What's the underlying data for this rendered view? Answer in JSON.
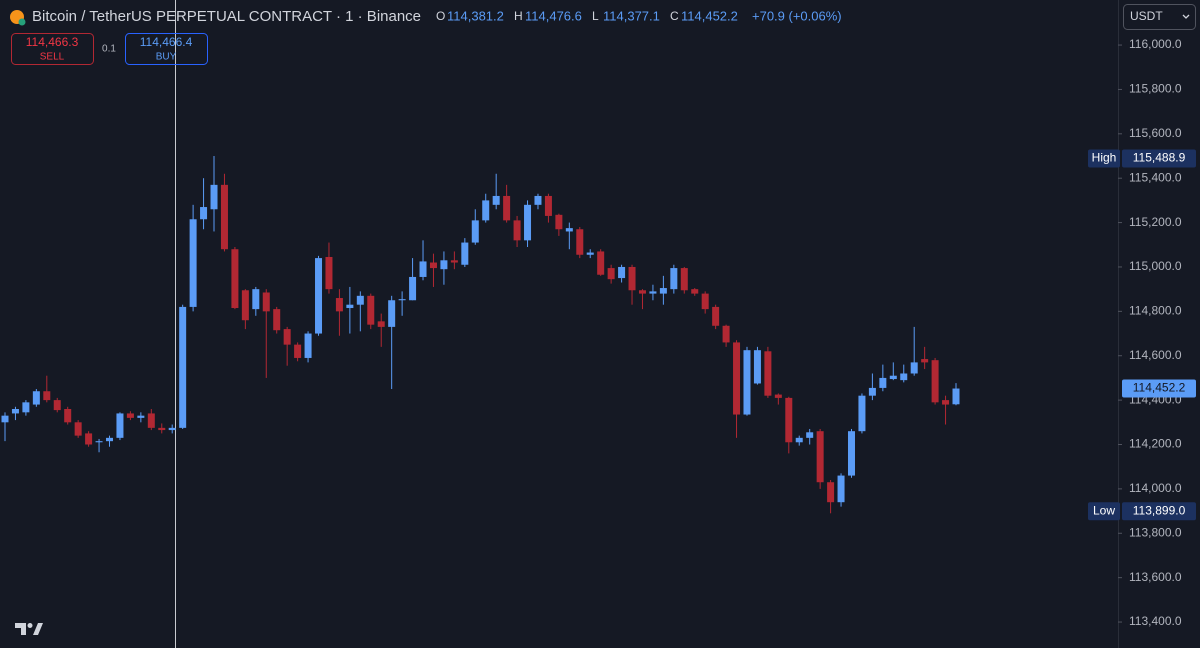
{
  "chart_data": {
    "type": "candlestick",
    "title": "Bitcoin / TetherUS PERPETUAL CONTRACT · 1 · Binance",
    "ohlc_header": [
      {
        "label": "O",
        "value": "114,381.2"
      },
      {
        "label": "H",
        "value": "114,476.6"
      },
      {
        "label": "L",
        "value": "114,377.1"
      },
      {
        "label": "C",
        "value": "114,452.2"
      }
    ],
    "change": "+70.9 (+0.06%)",
    "sell": {
      "price": "114,466.3",
      "label": "SELL"
    },
    "quantity": "0.1",
    "buy": {
      "price": "114,466.4",
      "label": "BUY"
    },
    "currency": "USDT",
    "up_color": "#5b9cf6",
    "down_color": "#b22833",
    "categories": [
      null,
      null,
      null,
      null,
      null,
      null,
      null,
      null,
      null,
      null,
      null,
      null,
      null,
      null,
      null,
      null,
      null,
      null,
      null,
      null,
      null,
      null,
      null,
      null,
      null,
      null,
      null,
      null,
      null,
      null,
      null,
      null,
      null,
      null,
      null,
      null,
      null,
      null,
      null,
      null,
      null,
      null,
      null,
      null,
      null,
      null,
      null,
      null,
      null,
      null,
      null,
      null,
      null,
      null,
      null,
      null,
      null,
      null,
      null,
      null,
      null,
      null,
      null,
      null,
      null,
      null,
      null,
      null,
      null,
      null,
      null,
      null,
      null,
      null,
      null,
      null,
      null,
      null,
      null,
      null,
      null,
      null,
      null,
      null,
      null,
      null,
      null,
      null,
      null,
      null,
      null,
      null
    ],
    "open": [
      114300,
      114340,
      114345,
      114380,
      114440,
      114400,
      114360,
      114300,
      114250,
      114210,
      114215,
      114230,
      114340,
      114320,
      114340,
      114275,
      114265,
      114275,
      114820,
      115215,
      115260,
      115370,
      115080,
      114895,
      114810,
      114885,
      114810,
      114720,
      114650,
      114590,
      114700,
      115045,
      114860,
      114815,
      114830,
      114870,
      114755,
      114730,
      114850,
      114850,
      114955,
      115020,
      114990,
      115030,
      115010,
      115110,
      115210,
      115280,
      115320,
      115210,
      115120,
      115280,
      115320,
      115235,
      115160,
      115170,
      115055,
      115070,
      114995,
      114950,
      115000,
      114895,
      114880,
      114880,
      114900,
      114995,
      114900,
      114880,
      114820,
      114735,
      114660,
      114335,
      114475,
      114620,
      114425,
      114410,
      114210,
      114230,
      114260,
      114030,
      113940,
      114060,
      114260,
      114420,
      114455,
      114495,
      114490,
      114520,
      114585,
      114580,
      114400,
      114381.2
    ],
    "high": [
      114345,
      114370,
      114400,
      114450,
      114510,
      114410,
      114370,
      114310,
      114260,
      114225,
      114240,
      114345,
      114350,
      114345,
      114360,
      114295,
      114290,
      114830,
      115280,
      115400,
      115500,
      115420,
      115090,
      114900,
      114910,
      114900,
      114820,
      114730,
      114660,
      114710,
      115050,
      115110,
      114900,
      114910,
      114890,
      114880,
      114790,
      114870,
      114890,
      115040,
      115120,
      115060,
      115070,
      115070,
      115130,
      115260,
      115330,
      115420,
      115370,
      115230,
      115300,
      115330,
      115330,
      115240,
      115200,
      115180,
      115080,
      115080,
      115010,
      115010,
      115010,
      114900,
      114920,
      114960,
      115010,
      115000,
      114905,
      114890,
      114830,
      114740,
      114670,
      114640,
      114640,
      114640,
      114430,
      114415,
      114240,
      114270,
      114270,
      114040,
      114070,
      114270,
      114430,
      114520,
      114560,
      114570,
      114560,
      114730,
      114640,
      114590,
      114420,
      114476.6
    ],
    "low": [
      114215,
      114310,
      114330,
      114370,
      114390,
      114345,
      114290,
      114230,
      114190,
      114165,
      114190,
      114220,
      114310,
      114300,
      114265,
      114250,
      114250,
      114270,
      114800,
      115170,
      115160,
      115070,
      114810,
      114720,
      114780,
      114500,
      114700,
      114555,
      114575,
      114570,
      114690,
      114880,
      114690,
      114700,
      114710,
      114720,
      114640,
      114450,
      114780,
      114850,
      114940,
      114910,
      114920,
      114990,
      115000,
      115100,
      115200,
      115260,
      115200,
      115090,
      115090,
      115260,
      115200,
      115140,
      115080,
      115040,
      115040,
      114960,
      114925,
      114930,
      114830,
      114810,
      114850,
      114830,
      114880,
      114880,
      114870,
      114790,
      114720,
      114640,
      114230,
      114330,
      114470,
      114410,
      114380,
      114160,
      114195,
      114200,
      114000,
      113890,
      113920,
      114050,
      114250,
      114400,
      114440,
      114490,
      114480,
      114510,
      114540,
      114380,
      114290,
      114377.1
    ],
    "close": [
      114330,
      114360,
      114390,
      114440,
      114400,
      114355,
      114300,
      114240,
      114200,
      114215,
      114230,
      114340,
      114320,
      114330,
      114275,
      114265,
      114275,
      114820,
      115215,
      115270,
      115370,
      115080,
      114815,
      114760,
      114900,
      114800,
      114715,
      114650,
      114590,
      114700,
      115040,
      114900,
      114800,
      114830,
      114870,
      114740,
      114730,
      114850,
      114855,
      114955,
      115025,
      114995,
      115030,
      115020,
      115110,
      115210,
      115300,
      115320,
      115210,
      115120,
      115280,
      115320,
      115230,
      115170,
      115175,
      115055,
      115065,
      114965,
      114945,
      115000,
      114895,
      114880,
      114890,
      114905,
      114995,
      114895,
      114880,
      114810,
      114735,
      114660,
      114335,
      114625,
      114625,
      114420,
      114410,
      114210,
      114230,
      114255,
      114030,
      113940,
      114060,
      114260,
      114420,
      114455,
      114500,
      114510,
      114520,
      114570,
      114570,
      114390,
      114380,
      114452.2
    ],
    "ylim": [
      113283,
      116203
    ],
    "yticks": [
      {
        "value": 113400,
        "label": "113,400.0"
      },
      {
        "value": 113600,
        "label": "113,600.0"
      },
      {
        "value": 113800,
        "label": "113,800.0"
      },
      {
        "value": 114000,
        "label": "114,000.0"
      },
      {
        "value": 114200,
        "label": "114,200.0"
      },
      {
        "value": 114400,
        "label": "114,400.0"
      },
      {
        "value": 114600,
        "label": "114,600.0"
      },
      {
        "value": 114800,
        "label": "114,800.0"
      },
      {
        "value": 115000,
        "label": "115,000.0"
      },
      {
        "value": 115200,
        "label": "115,200.0"
      },
      {
        "value": 115400,
        "label": "115,400.0"
      },
      {
        "value": 115600,
        "label": "115,600.0"
      },
      {
        "value": 115800,
        "label": "115,800.0"
      },
      {
        "value": 116000,
        "label": "116,000.0"
      }
    ],
    "markers": [
      {
        "name": "High",
        "value": 115488.9,
        "label": "115,488.9",
        "color": "#1c3160"
      },
      {
        "name": "Low",
        "value": 113899,
        "label": "113,899.0",
        "color": "#1c3160"
      },
      {
        "value": 114452.2,
        "label": "114,452.2",
        "color": "#5b9cf6"
      }
    ]
  }
}
